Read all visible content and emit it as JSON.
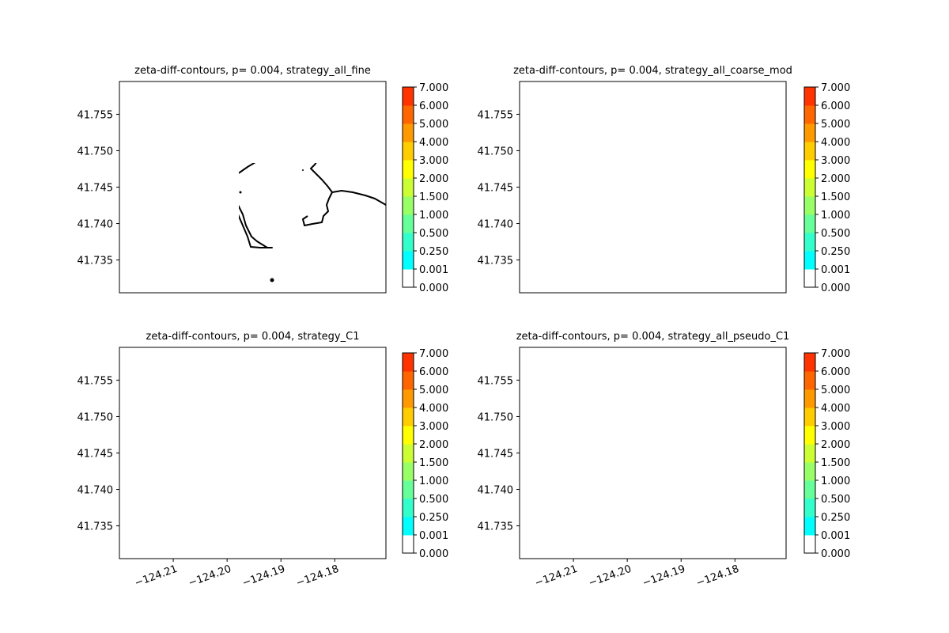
{
  "figure": {
    "background": "#ffffff"
  },
  "chart_data": [
    {
      "type": "heatmap",
      "title": "zeta-diff-contours, p= 0.004, strategy_all_fine",
      "xlim": [
        -124.22,
        -124.1705
      ],
      "ylim": [
        41.7305,
        41.7595
      ],
      "yticks": [
        "41.735",
        "41.740",
        "41.745",
        "41.750",
        "41.755"
      ],
      "ytick_values": [
        41.735,
        41.74,
        41.745,
        41.75,
        41.755
      ],
      "xticks": [],
      "field": "none",
      "colorbar": true
    },
    {
      "type": "heatmap",
      "title": "zeta-diff-contours, p= 0.004, strategy_all_coarse_mod",
      "xlim": [
        -124.22,
        -124.1705
      ],
      "ylim": [
        41.7305,
        41.7595
      ],
      "yticks": [
        "41.735",
        "41.740",
        "41.745",
        "41.750",
        "41.755"
      ],
      "ytick_values": [
        41.735,
        41.74,
        41.745,
        41.75,
        41.755
      ],
      "xticks": [],
      "field": "coarse",
      "colorbar": true
    },
    {
      "type": "heatmap",
      "title": "zeta-diff-contours, p= 0.004, strategy_C1",
      "xlim": [
        -124.22,
        -124.1705
      ],
      "ylim": [
        41.7305,
        41.7595
      ],
      "yticks": [
        "41.735",
        "41.740",
        "41.745",
        "41.750",
        "41.755"
      ],
      "ytick_values": [
        41.735,
        41.74,
        41.745,
        41.75,
        41.755
      ],
      "xticks": [
        "−124.21",
        "−124.20",
        "−124.19",
        "−124.18"
      ],
      "xtick_values": [
        -124.21,
        -124.2,
        -124.19,
        -124.18
      ],
      "field": "c1",
      "colorbar": true
    },
    {
      "type": "heatmap",
      "title": "zeta-diff-contours, p= 0.004, strategy_all_pseudo_C1",
      "xlim": [
        -124.22,
        -124.1705
      ],
      "ylim": [
        41.7305,
        41.7595
      ],
      "yticks": [
        "41.735",
        "41.740",
        "41.745",
        "41.750",
        "41.755"
      ],
      "ytick_values": [
        41.735,
        41.74,
        41.745,
        41.75,
        41.755
      ],
      "xticks": [
        "−124.21",
        "−124.20",
        "−124.19",
        "−124.18"
      ],
      "xtick_values": [
        -124.21,
        -124.2,
        -124.19,
        -124.18
      ],
      "field": "pseudo",
      "colorbar": true
    }
  ],
  "colorbar": {
    "levels": [
      "0.000",
      "0.001",
      "0.250",
      "0.500",
      "1.000",
      "1.500",
      "2.000",
      "3.000",
      "4.000",
      "5.000",
      "6.000",
      "7.000"
    ],
    "colors": [
      "#ffffff",
      "#00ffff",
      "#33ffcc",
      "#66ff99",
      "#99ff66",
      "#ccff33",
      "#ffff00",
      "#ffcc00",
      "#ff9900",
      "#ff6600",
      "#ff3300",
      "#ff0000"
    ]
  }
}
